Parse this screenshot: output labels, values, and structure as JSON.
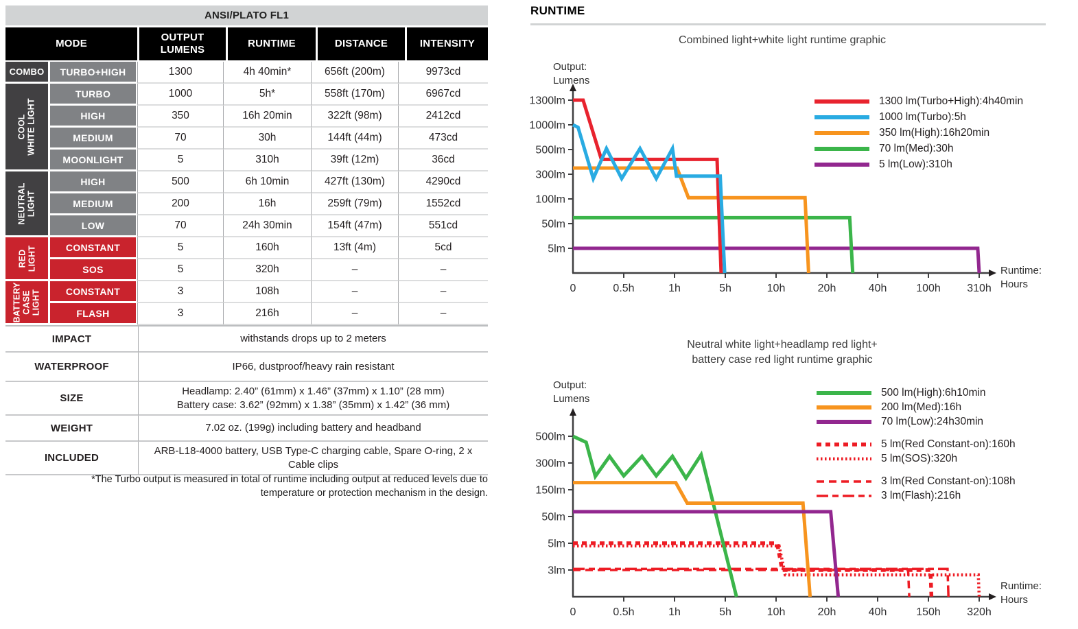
{
  "colors": {
    "chart_red": "#e8232e",
    "chart_blue": "#29abe2",
    "chart_orange": "#f7941e",
    "chart_green": "#3bb54a",
    "chart_purple": "#92278f",
    "legend_red": "#ed1c24",
    "table_red": "#c9232d",
    "table_dark_gray": "#414042",
    "table_mode_gray": "#808285",
    "table_title_bar": "#d1d3d4",
    "table_header": "#000000"
  },
  "table": {
    "title": "ANSI/PLATO FL1",
    "columns": [
      "MODE",
      "OUTPUT LUMENS",
      "RUNTIME",
      "DISTANCE",
      "INTENSITY"
    ],
    "groups": [
      {
        "label_lines": [
          "COMBO"
        ],
        "style": "dark",
        "vertical": false,
        "rows": [
          {
            "mode": "TURBO+HIGH",
            "lumens": "1300",
            "runtime": "4h 40min*",
            "distance": "656ft (200m)",
            "intensity": "9973cd"
          }
        ]
      },
      {
        "label_lines": [
          "COOL",
          "WHITE LIGHT"
        ],
        "style": "dark",
        "vertical": true,
        "rows": [
          {
            "mode": "TURBO",
            "lumens": "1000",
            "runtime": "5h*",
            "distance": "558ft (170m)",
            "intensity": "6967cd"
          },
          {
            "mode": "HIGH",
            "lumens": "350",
            "runtime": "16h 20min",
            "distance": "322ft (98m)",
            "intensity": "2412cd"
          },
          {
            "mode": "MEDIUM",
            "lumens": "70",
            "runtime": "30h",
            "distance": "144ft (44m)",
            "intensity": "473cd"
          },
          {
            "mode": "MOONLIGHT",
            "lumens": "5",
            "runtime": "310h",
            "distance": "39ft (12m)",
            "intensity": "36cd"
          }
        ]
      },
      {
        "label_lines": [
          "NEUTRAL",
          "LIGHT"
        ],
        "style": "dark",
        "vertical": true,
        "rows": [
          {
            "mode": "HIGH",
            "lumens": "500",
            "runtime": "6h 10min",
            "distance": "427ft (130m)",
            "intensity": "4290cd"
          },
          {
            "mode": "MEDIUM",
            "lumens": "200",
            "runtime": "16h",
            "distance": "259ft (79m)",
            "intensity": "1552cd"
          },
          {
            "mode": "LOW",
            "lumens": "70",
            "runtime": "24h 30min",
            "distance": "154ft (47m)",
            "intensity": "551cd"
          }
        ]
      },
      {
        "label_lines": [
          "RED",
          "LIGHT"
        ],
        "style": "red",
        "vertical": true,
        "rows": [
          {
            "mode": "CONSTANT",
            "lumens": "5",
            "runtime": "160h",
            "distance": "13ft (4m)",
            "intensity": "5cd"
          },
          {
            "mode": "SOS",
            "lumens": "5",
            "runtime": "320h",
            "distance": "–",
            "intensity": "–"
          }
        ]
      },
      {
        "label_lines": [
          "BATTERY",
          "CASE",
          "LIGHT"
        ],
        "style": "red",
        "vertical": true,
        "rows": [
          {
            "mode": "CONSTANT",
            "lumens": "3",
            "runtime": "108h",
            "distance": "–",
            "intensity": "–"
          },
          {
            "mode": "FLASH",
            "lumens": "3",
            "runtime": "216h",
            "distance": "–",
            "intensity": "–"
          }
        ]
      }
    ],
    "specs": [
      {
        "label": "IMPACT",
        "value_lines": [
          "withstands drops up to 2 meters"
        ]
      },
      {
        "label": "WATERPROOF",
        "value_lines": [
          "IP66, dustproof/heavy rain resistant"
        ]
      },
      {
        "label": "SIZE",
        "value_lines": [
          "Headlamp: 2.40” (61mm) x 1.46” (37mm) x 1.10” (28 mm)",
          "Battery case: 3.62” (92mm) x 1.38” (35mm) x 1.42” (36 mm)"
        ]
      },
      {
        "label": "WEIGHT",
        "value_lines": [
          "7.02 oz. (199g) including battery and headband"
        ]
      },
      {
        "label": "INCLUDED",
        "value_lines": [
          "ARB-L18-4000 battery, USB Type-C charging cable, Spare O-ring, 2 x",
          "Cable clips"
        ]
      }
    ],
    "footnote_lines": [
      "*The Turbo output is measured in total of runtime including output at reduced levels due to",
      "temperature or protection mechanism in the design."
    ]
  },
  "runtime": {
    "heading": "RUNTIME"
  },
  "chart_data": [
    {
      "type": "line",
      "title": "Combined light+white light runtime graphic",
      "xlabel": "Runtime:\nHours",
      "ylabel": "Output:\nLumens",
      "legend_position": "top-right",
      "grid": false,
      "x_ticks": {
        "values": [
          0,
          0.5,
          1,
          5,
          10,
          20,
          40,
          100,
          310
        ],
        "labels": [
          "0",
          "0.5h",
          "1h",
          "5h",
          "10h",
          "20h",
          "40h",
          "100h",
          "310h"
        ]
      },
      "y_ticks": {
        "values": [
          5,
          50,
          100,
          300,
          500,
          1000,
          1300
        ],
        "labels": [
          "5lm",
          "50lm",
          "100lm",
          "300lm",
          "500lm",
          "1000lm",
          "1300lm"
        ]
      },
      "series": [
        {
          "name": "1300 lm(Turbo+High):4h40min",
          "color": "#e8232e",
          "style": "solid",
          "legend_group": 0,
          "z": 4,
          "points": [
            [
              0,
              1300
            ],
            [
              0.1,
              1300
            ],
            [
              0.28,
              420
            ],
            [
              4.35,
              420
            ],
            [
              4.67,
              0
            ]
          ]
        },
        {
          "name": "1000 lm(Turbo):5h",
          "color": "#29abe2",
          "style": "solid",
          "legend_group": 0,
          "z": 5,
          "points": [
            [
              0,
              1000
            ],
            [
              0.05,
              950
            ],
            [
              0.2,
              265
            ],
            [
              0.33,
              520
            ],
            [
              0.48,
              265
            ],
            [
              0.66,
              520
            ],
            [
              0.82,
              265
            ],
            [
              0.98,
              520
            ],
            [
              1.15,
              285
            ],
            [
              4.6,
              285
            ],
            [
              4.95,
              0
            ]
          ]
        },
        {
          "name": "350 lm(High):16h20min",
          "color": "#f7941e",
          "style": "solid",
          "legend_group": 0,
          "z": 3,
          "points": [
            [
              0,
              350
            ],
            [
              1.2,
              350
            ],
            [
              2.1,
              110
            ],
            [
              15.7,
              110
            ],
            [
              16.4,
              0
            ]
          ]
        },
        {
          "name": "70 lm(Med):30h",
          "color": "#3bb54a",
          "style": "solid",
          "legend_group": 0,
          "z": 2,
          "points": [
            [
              0,
              62
            ],
            [
              29,
              62
            ],
            [
              30.2,
              0
            ]
          ]
        },
        {
          "name": "5 lm(Low):310h",
          "color": "#92278f",
          "style": "solid",
          "legend_group": 0,
          "z": 1,
          "points": [
            [
              0,
              5
            ],
            [
              304,
              5
            ],
            [
              310,
              0
            ]
          ]
        }
      ]
    },
    {
      "type": "line",
      "title": "Neutral white light+headlamp red light+\nbattery case red light runtime graphic",
      "xlabel": "Runtime:\nHours",
      "ylabel": "Output:\nLumens",
      "legend_position": "top-right",
      "grid": false,
      "x_ticks": {
        "values": [
          0,
          0.5,
          1,
          5,
          10,
          20,
          40,
          150,
          320
        ],
        "labels": [
          "0",
          "0.5h",
          "1h",
          "5h",
          "10h",
          "20h",
          "40h",
          "150h",
          "320h"
        ]
      },
      "y_ticks": {
        "values": [
          3,
          5,
          50,
          150,
          300,
          500
        ],
        "labels": [
          "3lm",
          "5lm",
          "50lm",
          "150lm",
          "300lm",
          "500lm"
        ]
      },
      "series": [
        {
          "name": "500 lm(High):6h10min",
          "color": "#3bb54a",
          "style": "solid",
          "legend_group": 0,
          "z": 5,
          "points": [
            [
              0,
              500
            ],
            [
              0.13,
              455
            ],
            [
              0.22,
              225
            ],
            [
              0.36,
              350
            ],
            [
              0.5,
              228
            ],
            [
              0.68,
              350
            ],
            [
              0.82,
              228
            ],
            [
              0.98,
              350
            ],
            [
              1.9,
              215
            ],
            [
              3.1,
              362
            ],
            [
              6.1,
              0
            ]
          ]
        },
        {
          "name": "200 lm(Med):16h",
          "color": "#f7941e",
          "style": "solid",
          "legend_group": 0,
          "z": 6,
          "points": [
            [
              0,
              190
            ],
            [
              1.1,
              190
            ],
            [
              2,
              100
            ],
            [
              15.3,
              100
            ],
            [
              16.7,
              0
            ]
          ]
        },
        {
          "name": "70 lm(Low):24h30min",
          "color": "#92278f",
          "style": "solid",
          "legend_group": 0,
          "z": 7,
          "points": [
            [
              0,
              68
            ],
            [
              21.5,
              68
            ],
            [
              24.5,
              0
            ]
          ]
        },
        {
          "name": "5 lm(Red Constant-on):160h",
          "color": "#ed1c24",
          "style": "dash-bold",
          "legend_group": 1,
          "z": 3,
          "points": [
            [
              0,
              5
            ],
            [
              10.2,
              5
            ],
            [
              11.2,
              3
            ],
            [
              157,
              3
            ],
            [
              160,
              0
            ]
          ]
        },
        {
          "name": "5 lm(SOS):320h",
          "color": "#ed1c24",
          "style": "dots",
          "legend_group": 1,
          "z": 4,
          "points": [
            [
              0,
              4.8
            ],
            [
              10.6,
              4.8
            ],
            [
              11.8,
              2.45
            ],
            [
              317,
              2.45
            ],
            [
              320,
              0
            ]
          ]
        },
        {
          "name": "3 lm(Red Constant-on):108h",
          "color": "#ed1c24",
          "style": "dash",
          "legend_group": 2,
          "z": 2,
          "points": [
            [
              0,
              3
            ],
            [
              106,
              3
            ],
            [
              108.5,
              0
            ]
          ]
        },
        {
          "name": "3 lm(Flash):216h",
          "color": "#ed1c24",
          "style": "longdash",
          "legend_group": 2,
          "z": 1,
          "points": [
            [
              0,
              3.08
            ],
            [
              214,
              3.08
            ],
            [
              217,
              0
            ]
          ]
        }
      ]
    }
  ]
}
